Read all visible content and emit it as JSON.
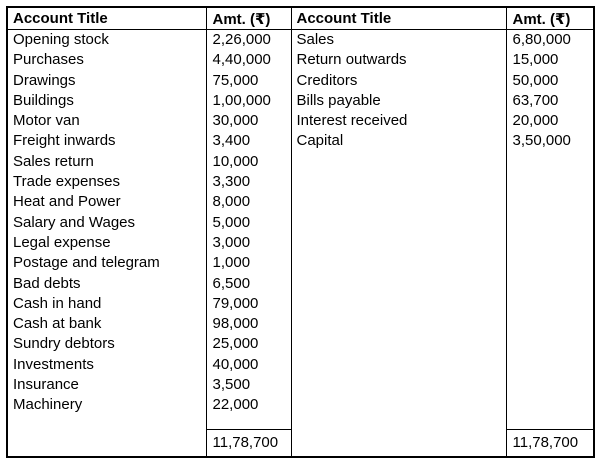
{
  "table": {
    "headers": [
      "Account Title",
      "Amt. (₹)",
      "Account Title",
      "Amt. (₹)"
    ],
    "rows": [
      {
        "left_title": "Opening stock",
        "left_amount": "2,26,000",
        "right_title": "Sales",
        "right_amount": "6,80,000"
      },
      {
        "left_title": "Purchases",
        "left_amount": "4,40,000",
        "right_title": "Return outwards",
        "right_amount": "15,000"
      },
      {
        "left_title": "Drawings",
        "left_amount": "75,000",
        "right_title": "Creditors",
        "right_amount": "50,000"
      },
      {
        "left_title": "Buildings",
        "left_amount": "1,00,000",
        "right_title": "Bills payable",
        "right_amount": "63,700"
      },
      {
        "left_title": "Motor van",
        "left_amount": "30,000",
        "right_title": "Interest received",
        "right_amount": "20,000"
      },
      {
        "left_title": "Freight inwards",
        "left_amount": "3,400",
        "right_title": "Capital",
        "right_amount": "3,50,000"
      },
      {
        "left_title": "Sales return",
        "left_amount": "10,000",
        "right_title": "",
        "right_amount": ""
      },
      {
        "left_title": "Trade expenses",
        "left_amount": "3,300",
        "right_title": "",
        "right_amount": ""
      },
      {
        "left_title": "Heat and Power",
        "left_amount": "8,000",
        "right_title": "",
        "right_amount": ""
      },
      {
        "left_title": "Salary and Wages",
        "left_amount": "5,000",
        "right_title": "",
        "right_amount": ""
      },
      {
        "left_title": "Legal expense",
        "left_amount": "3,000",
        "right_title": "",
        "right_amount": ""
      },
      {
        "left_title": "Postage and telegram",
        "left_amount": "1,000",
        "right_title": "",
        "right_amount": ""
      },
      {
        "left_title": "Bad debts",
        "left_amount": "6,500",
        "right_title": "",
        "right_amount": ""
      },
      {
        "left_title": "Cash in hand",
        "left_amount": "79,000",
        "right_title": "",
        "right_amount": ""
      },
      {
        "left_title": "Cash at bank",
        "left_amount": "98,000",
        "right_title": "",
        "right_amount": ""
      },
      {
        "left_title": "Sundry debtors",
        "left_amount": "25,000",
        "right_title": "",
        "right_amount": ""
      },
      {
        "left_title": "Investments",
        "left_amount": "40,000",
        "right_title": "",
        "right_amount": ""
      },
      {
        "left_title": "Insurance",
        "left_amount": "3,500",
        "right_title": "",
        "right_amount": ""
      },
      {
        "left_title": "Machinery",
        "left_amount": "22,000",
        "right_title": "",
        "right_amount": ""
      }
    ],
    "totals": {
      "left": "11,78,700",
      "right": "11,78,700"
    },
    "colors": {
      "border": "#000000",
      "text": "#000000",
      "background": "#ffffff"
    }
  }
}
